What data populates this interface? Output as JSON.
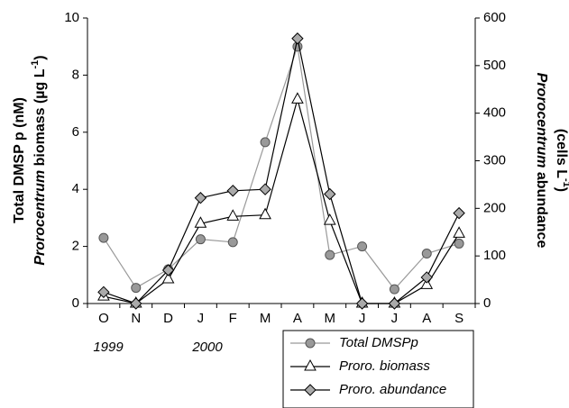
{
  "chart_data": {
    "type": "line",
    "categories": [
      "O",
      "N",
      "D",
      "J",
      "F",
      "M",
      "A",
      "M",
      "J",
      "J",
      "A",
      "S"
    ],
    "annotations": [
      "1999",
      "2000"
    ],
    "ylabel": {
      "line1": "Total DMSP p (nM)",
      "line2_italic": "Prorocentrum",
      "line2": " biomass (µg L",
      "line2_sup": "-1",
      "line2_end": ")"
    },
    "y2label": {
      "line1_italic": "Prorocentrum",
      "line1": " abundance",
      "line2": "(cells L",
      "line2_sup": "-1",
      "line2_end": ")"
    },
    "ylim": [
      0,
      10
    ],
    "yticks": [
      0,
      2,
      4,
      6,
      8,
      10
    ],
    "y2lim": [
      0,
      600
    ],
    "y2ticks": [
      0,
      100,
      200,
      300,
      400,
      500,
      600
    ],
    "series": [
      {
        "name": "Total DMSPp",
        "color": "#999999",
        "marker": "circle",
        "marker_fill": "#999999",
        "values": [
          2.3,
          0.55,
          1.2,
          2.25,
          2.15,
          5.65,
          9.0,
          1.7,
          2.0,
          0.5,
          1.75,
          2.1
        ]
      },
      {
        "name": "Proro. biomass",
        "color": "#000000",
        "marker": "triangle",
        "marker_fill": "#ffffff",
        "values": [
          0.25,
          0.0,
          0.85,
          2.8,
          3.05,
          3.1,
          7.15,
          2.9,
          0.0,
          0.0,
          0.65,
          2.45
        ]
      },
      {
        "name": "Proro. abundance",
        "color": "#000000",
        "marker": "diamond",
        "marker_fill": "#aaaaaa",
        "axis": "y2",
        "values": [
          24,
          0,
          70,
          222,
          237,
          240,
          557,
          230,
          0,
          0,
          55,
          190
        ]
      }
    ]
  }
}
